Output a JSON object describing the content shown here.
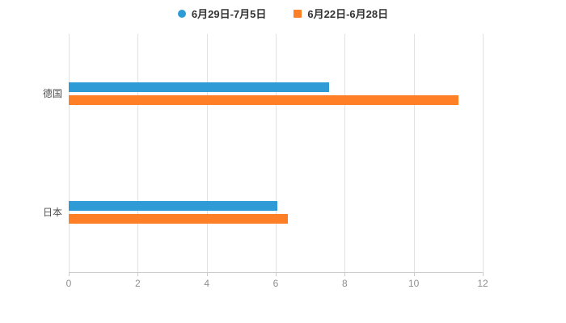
{
  "chart_data": {
    "type": "bar",
    "orientation": "horizontal",
    "title": "",
    "categories": [
      "德国",
      "日本"
    ],
    "series": [
      {
        "name": "6月29日-7月5日",
        "color": "#2E9BD6",
        "values": [
          7.55,
          6.05
        ]
      },
      {
        "name": "6月22日-6月28日",
        "color": "#FF7F27",
        "values": [
          11.3,
          6.35
        ]
      }
    ],
    "xlim": [
      0,
      12
    ],
    "xticks": [
      0,
      2,
      4,
      6,
      8,
      10,
      12
    ],
    "grid": true,
    "legend_position": "top",
    "axis_color": "#cccccc",
    "gridline_color": "#e2e2e2",
    "tick_label_color": "#8e8e8e",
    "category_label_color": "#4d4d4d"
  }
}
